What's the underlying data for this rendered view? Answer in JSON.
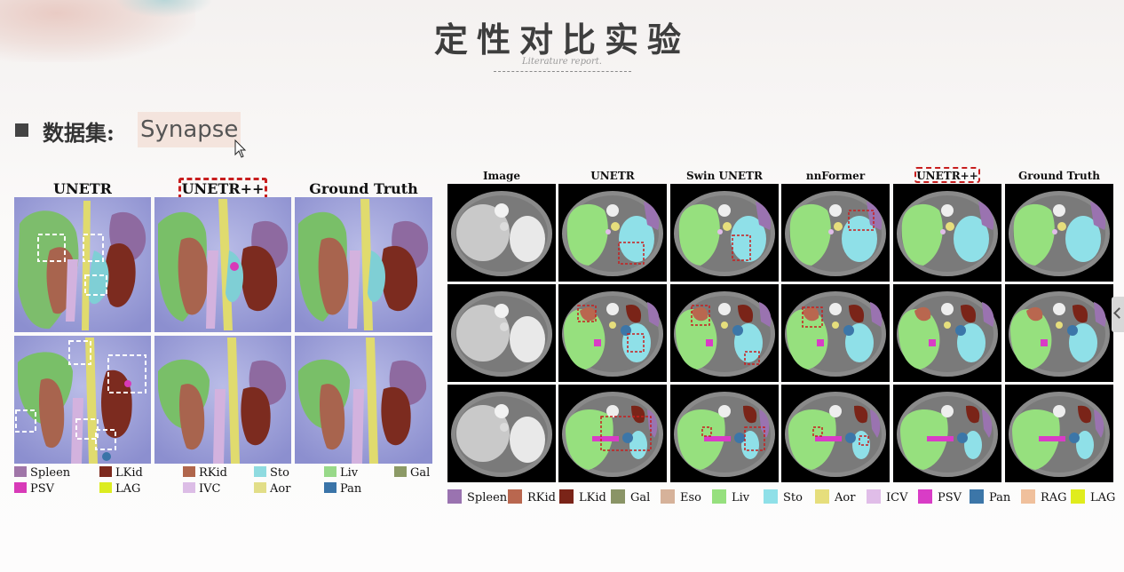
{
  "slide": {
    "title": "定性对比实验",
    "subtitle": "Literature report.",
    "bullet_label": "数据集:",
    "dataset": "Synapse"
  },
  "left_figure": {
    "headers": [
      "UNETR",
      "UNETR++",
      "Ground Truth"
    ],
    "highlighted_header": "UNETR++",
    "legend": [
      {
        "label": "Spleen",
        "color": "#a076a8"
      },
      {
        "label": "LKid",
        "color": "#7d2a1e"
      },
      {
        "label": "RKid",
        "color": "#b0664c"
      },
      {
        "label": "Sto",
        "color": "#8fdbe0"
      },
      {
        "label": "Liv",
        "color": "#98d989"
      },
      {
        "label": "Gal",
        "color": "#8c9a66"
      },
      {
        "label": "PSV",
        "color": "#d83ab8"
      },
      {
        "label": "LAG",
        "color": "#dcec20"
      },
      {
        "label": "IVC",
        "color": "#dcbde6"
      },
      {
        "label": "Aor",
        "color": "#e2de88"
      },
      {
        "label": "Pan",
        "color": "#3a74a8"
      }
    ]
  },
  "right_figure": {
    "headers": [
      "Image",
      "UNETR",
      "Swin UNETR",
      "nnFormer",
      "UNETR++",
      "Ground Truth"
    ],
    "highlighted_header": "UNETR++",
    "legend": [
      {
        "label": "Spleen",
        "color": "#9a73b0"
      },
      {
        "label": "RKid",
        "color": "#b9674f"
      },
      {
        "label": "LKid",
        "color": "#7a2418"
      },
      {
        "label": "Gal",
        "color": "#8a9466"
      },
      {
        "label": "Eso",
        "color": "#d6b29a"
      },
      {
        "label": "Liv",
        "color": "#96e07e"
      },
      {
        "label": "Sto",
        "color": "#8fe0e8"
      },
      {
        "label": "Aor",
        "color": "#e6de7c"
      },
      {
        "label": "ICV",
        "color": "#e0bde8"
      },
      {
        "label": "PSV",
        "color": "#d93cc6"
      },
      {
        "label": "Pan",
        "color": "#3c76a8"
      },
      {
        "label": "RAG",
        "color": "#f0c09c"
      },
      {
        "label": "LAG",
        "color": "#e0ec1c"
      }
    ]
  }
}
